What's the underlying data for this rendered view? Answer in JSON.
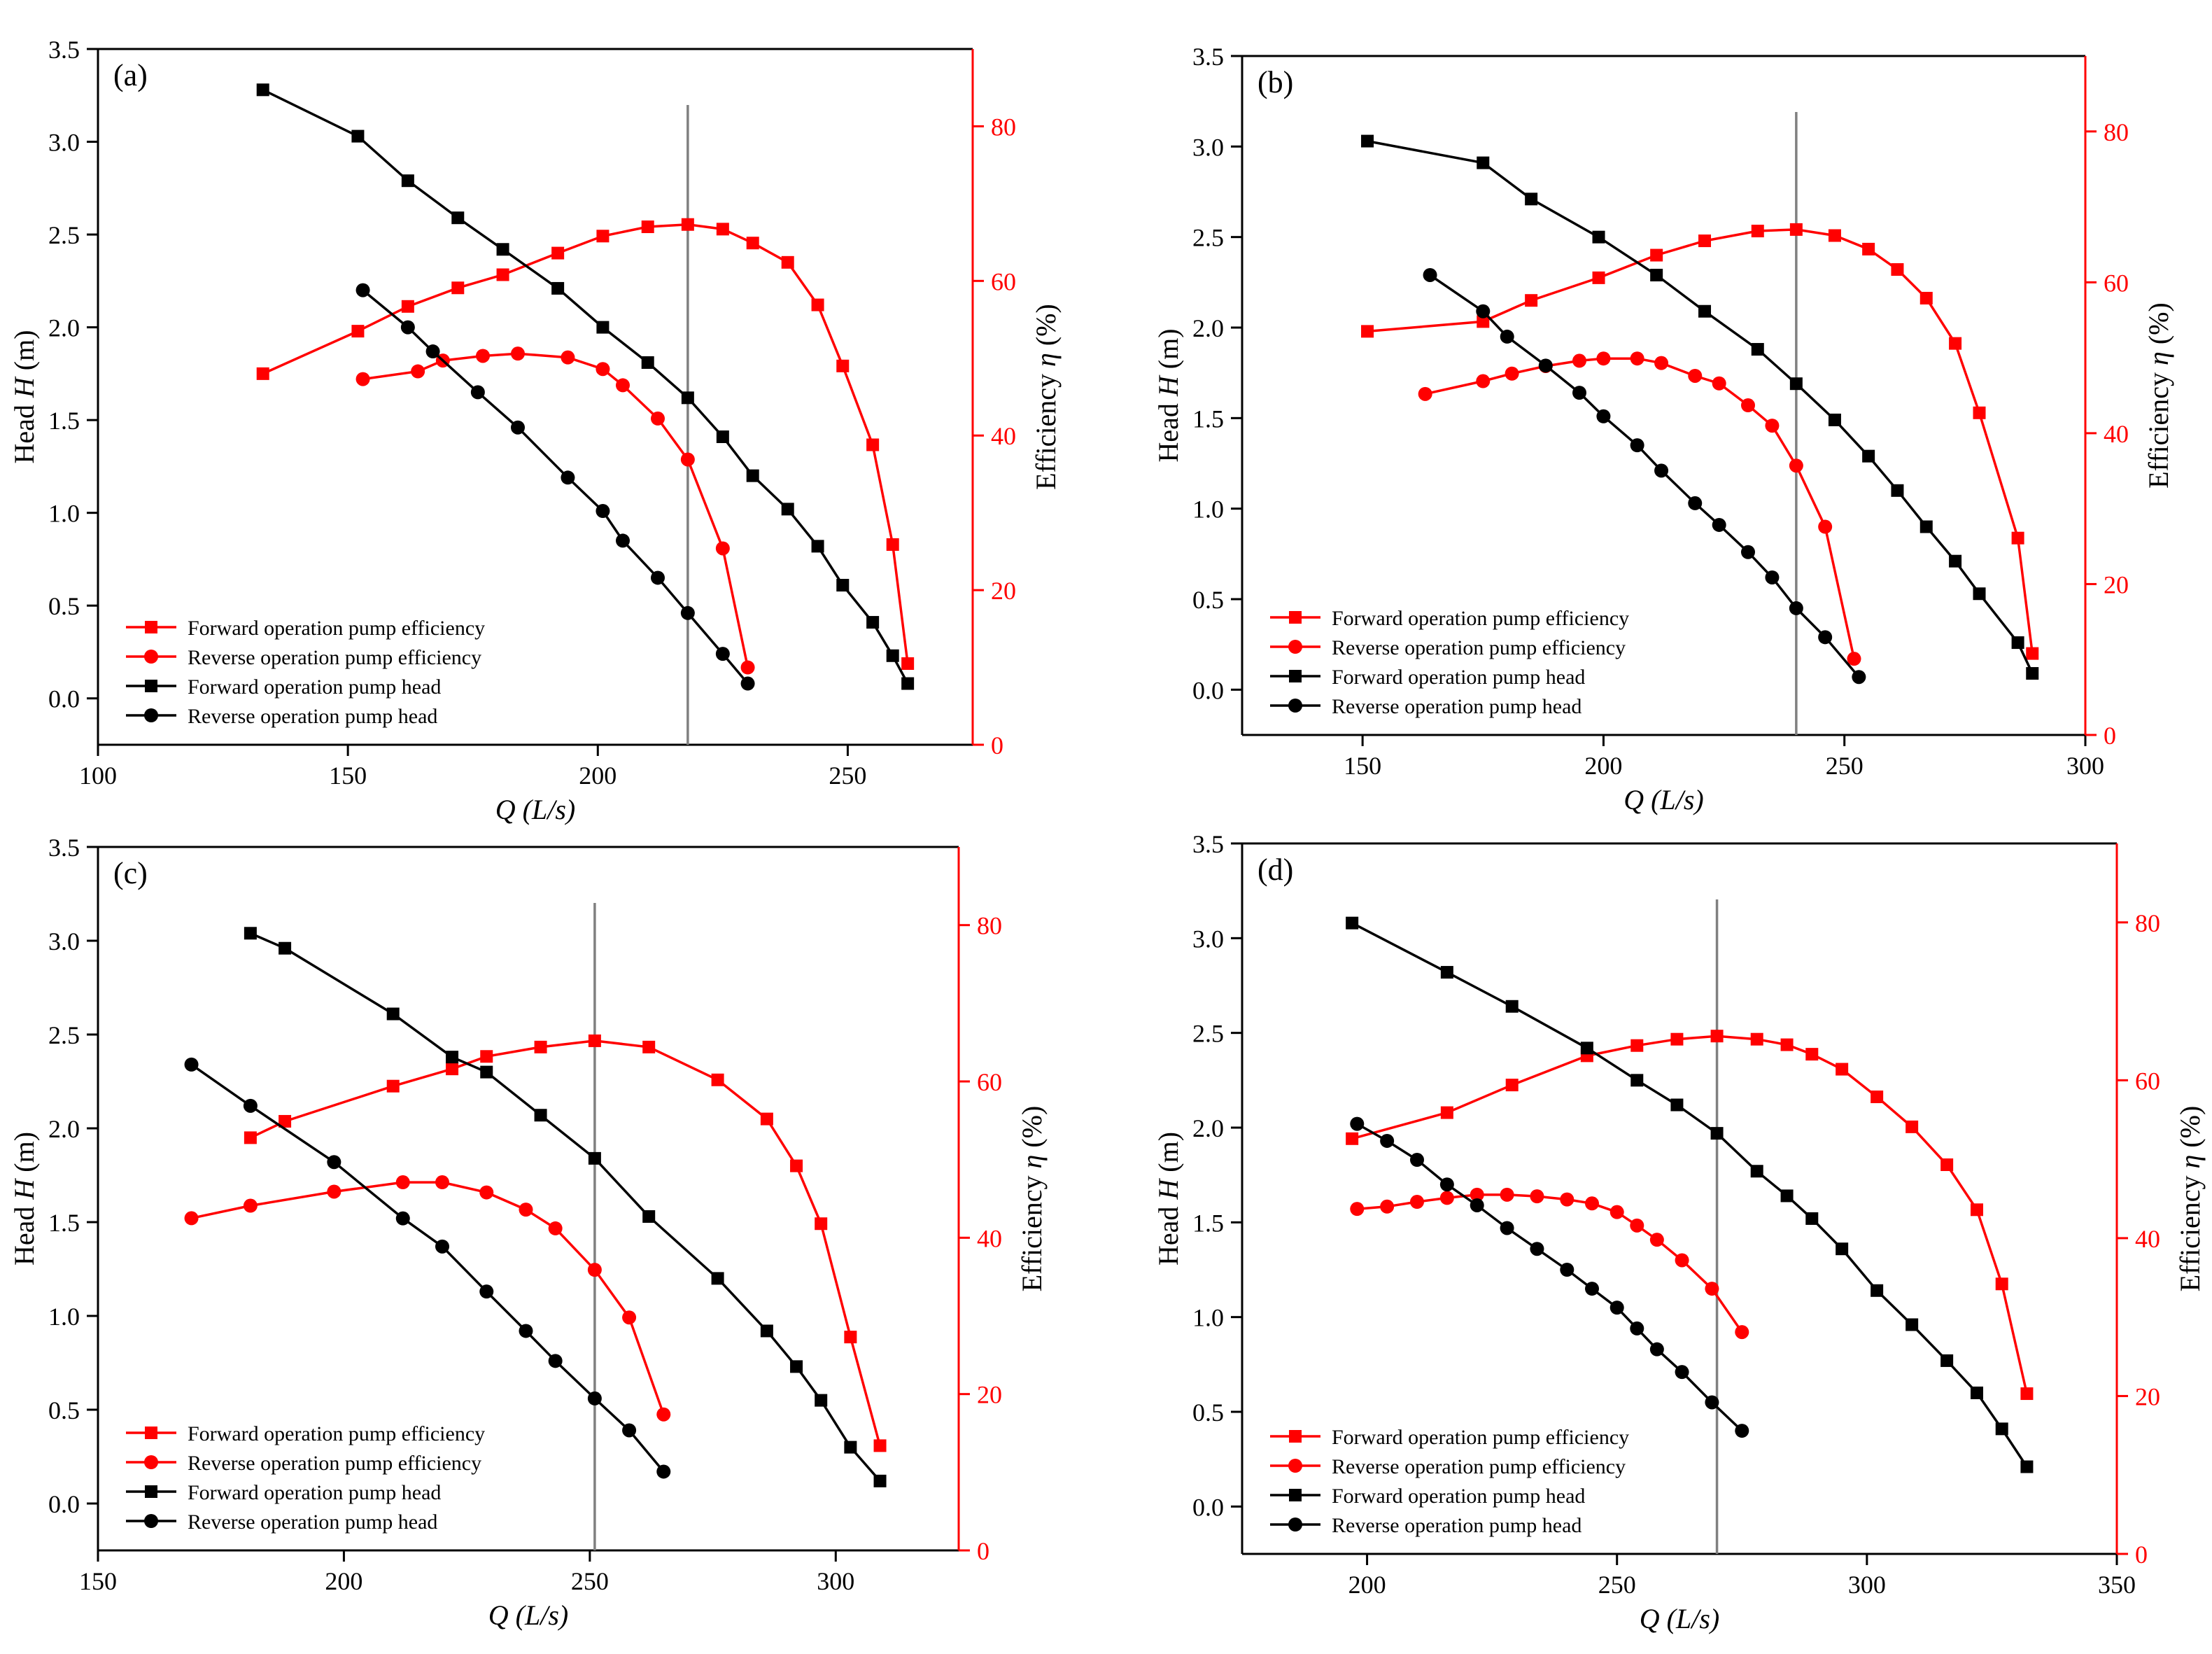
{
  "colors": {
    "head": "#000000",
    "efficiency": "#ff0000",
    "marker_line": "#808080",
    "axis": "#000000"
  },
  "chart_data": [
    {
      "type": "line",
      "label": "(a)",
      "xlabel_var": "Q",
      "xlabel_unit": "(L/s)",
      "ylabel_left_prefix": "Head ",
      "ylabel_left_var": "H",
      "ylabel_left_unit": " (m)",
      "ylabel_right_prefix": "Efficiency ",
      "ylabel_right_var": "η",
      "ylabel_right_unit": " (%)",
      "xlim": [
        100,
        275
      ],
      "xticks": [
        100,
        150,
        200,
        250
      ],
      "ylim_left": [
        -0.25,
        3.5
      ],
      "yticks_left": [
        0.0,
        0.5,
        1.0,
        1.5,
        2.0,
        2.5,
        3.0,
        3.5
      ],
      "ylim_right": [
        0,
        90
      ],
      "yticks_right": [
        0,
        20,
        40,
        60,
        80
      ],
      "vline_x": 218,
      "legend": [
        "Forward operation pump efficiency",
        "Reverse operation pump efficiency",
        "Forward operation pump head",
        "Reverse operation pump head"
      ],
      "series": [
        {
          "name": "Forward operation pump efficiency",
          "axis": "right",
          "marker": "square",
          "color": "#ff0000",
          "x": [
            133,
            152,
            162,
            172,
            181,
            192,
            201,
            210,
            218,
            225,
            231,
            238,
            244,
            249,
            255,
            259,
            262
          ],
          "y": [
            48,
            53.5,
            56.7,
            59.1,
            60.8,
            63.6,
            65.8,
            67,
            67.3,
            66.7,
            64.9,
            62.4,
            56.9,
            49,
            38.8,
            25.9,
            10.5
          ]
        },
        {
          "name": "Reverse operation pump efficiency",
          "axis": "right",
          "marker": "circle",
          "color": "#ff0000",
          "x": [
            153,
            164,
            169,
            177,
            184,
            194,
            201,
            205,
            212,
            218,
            225,
            230
          ],
          "y": [
            47.3,
            48.3,
            49.7,
            50.3,
            50.6,
            50.1,
            48.6,
            46.5,
            42.2,
            36.9,
            25.4,
            10
          ]
        },
        {
          "name": "Forward operation pump head",
          "axis": "left",
          "marker": "square",
          "color": "#000000",
          "x": [
            133,
            152,
            162,
            172,
            181,
            192,
            201,
            210,
            218,
            225,
            231,
            238,
            244,
            249,
            255,
            259,
            262
          ],
          "y": [
            3.28,
            3.03,
            2.79,
            2.59,
            2.42,
            2.21,
            2.0,
            1.81,
            1.62,
            1.41,
            1.2,
            1.02,
            0.82,
            0.61,
            0.41,
            0.23,
            0.08
          ]
        },
        {
          "name": "Reverse operation pump head",
          "axis": "left",
          "marker": "circle",
          "color": "#000000",
          "x": [
            153,
            162,
            167,
            176,
            184,
            194,
            201,
            205,
            212,
            218,
            225,
            230
          ],
          "y": [
            2.2,
            2.0,
            1.87,
            1.65,
            1.46,
            1.19,
            1.01,
            0.85,
            0.65,
            0.46,
            0.24,
            0.08
          ]
        }
      ]
    },
    {
      "type": "line",
      "label": "(b)",
      "xlabel_var": "Q",
      "xlabel_unit": "(L/s)",
      "ylabel_left_prefix": "Head ",
      "ylabel_left_var": "H",
      "ylabel_left_unit": " (m)",
      "ylabel_right_prefix": "Efficiency ",
      "ylabel_right_var": "η",
      "ylabel_right_unit": " (%)",
      "xlim": [
        125,
        300
      ],
      "xticks": [
        150,
        200,
        250,
        300
      ],
      "ylim_left": [
        -0.25,
        3.5
      ],
      "yticks_left": [
        0.0,
        0.5,
        1.0,
        1.5,
        2.0,
        2.5,
        3.0,
        3.5
      ],
      "ylim_right": [
        0,
        90
      ],
      "yticks_right": [
        0,
        20,
        40,
        60,
        80
      ],
      "vline_x": 240,
      "legend": [
        "Forward operation pump efficiency",
        "Reverse operation pump efficiency",
        "Forward operation pump head",
        "Reverse operation pump head"
      ],
      "series": [
        {
          "name": "Forward operation pump efficiency",
          "axis": "right",
          "marker": "square",
          "color": "#ff0000",
          "x": [
            151,
            175,
            185,
            199,
            211,
            221,
            232,
            240,
            248,
            255,
            261,
            267,
            273,
            278,
            286,
            289
          ],
          "y": [
            53.5,
            54.8,
            57.6,
            60.6,
            63.6,
            65.5,
            66.8,
            67,
            66.2,
            64.4,
            61.7,
            57.9,
            51.9,
            42.7,
            26.1,
            10.8
          ]
        },
        {
          "name": "Reverse operation pump efficiency",
          "axis": "right",
          "marker": "circle",
          "color": "#ff0000",
          "x": [
            163,
            175,
            181,
            188,
            195,
            200,
            207,
            212,
            219,
            224,
            230,
            235,
            240,
            246,
            252
          ],
          "y": [
            45.2,
            46.9,
            47.9,
            48.9,
            49.6,
            49.9,
            49.9,
            49.3,
            47.6,
            46.6,
            43.7,
            41,
            35.7,
            27.6,
            10.1
          ]
        },
        {
          "name": "Forward operation pump head",
          "axis": "left",
          "marker": "square",
          "color": "#000000",
          "x": [
            151,
            175,
            185,
            199,
            211,
            221,
            232,
            240,
            248,
            255,
            261,
            267,
            273,
            278,
            286,
            289
          ],
          "y": [
            3.03,
            2.91,
            2.71,
            2.5,
            2.29,
            2.09,
            1.88,
            1.69,
            1.49,
            1.29,
            1.1,
            0.9,
            0.71,
            0.53,
            0.26,
            0.09
          ]
        },
        {
          "name": "Reverse operation pump head",
          "axis": "left",
          "marker": "circle",
          "color": "#000000",
          "x": [
            164,
            175,
            180,
            188,
            195,
            200,
            207,
            212,
            219,
            224,
            230,
            235,
            240,
            246,
            253
          ],
          "y": [
            2.29,
            2.09,
            1.95,
            1.79,
            1.64,
            1.51,
            1.35,
            1.21,
            1.03,
            0.91,
            0.76,
            0.62,
            0.45,
            0.29,
            0.07
          ]
        }
      ]
    },
    {
      "type": "line",
      "label": "(c)",
      "xlabel_var": "Q",
      "xlabel_unit": "(L/s)",
      "ylabel_left_prefix": "Head ",
      "ylabel_left_var": "H",
      "ylabel_left_unit": " (m)",
      "ylabel_right_prefix": "Efficiency ",
      "ylabel_right_var": "η",
      "ylabel_right_unit": " (%)",
      "xlim": [
        150,
        325
      ],
      "xticks": [
        150,
        200,
        250,
        300
      ],
      "ylim_left": [
        -0.25,
        3.5
      ],
      "yticks_left": [
        0.0,
        0.5,
        1.0,
        1.5,
        2.0,
        2.5,
        3.0,
        3.5
      ],
      "ylim_right": [
        0,
        90
      ],
      "yticks_right": [
        0,
        20,
        40,
        60,
        80
      ],
      "vline_x": 251,
      "legend": [
        "Forward operation pump efficiency",
        "Reverse operation pump efficiency",
        "Forward operation pump head",
        "Reverse operation pump head"
      ],
      "series": [
        {
          "name": "Forward operation pump efficiency",
          "axis": "right",
          "marker": "square",
          "color": "#ff0000",
          "x": [
            181,
            188,
            210,
            222,
            229,
            240,
            251,
            262,
            276,
            286,
            292,
            297,
            303,
            309
          ],
          "y": [
            52.8,
            54.9,
            59.4,
            61.6,
            63.2,
            64.4,
            65.2,
            64.4,
            60.2,
            55.2,
            49.2,
            41.8,
            27.3,
            13.4
          ]
        },
        {
          "name": "Reverse operation pump efficiency",
          "axis": "right",
          "marker": "circle",
          "color": "#ff0000",
          "x": [
            169,
            181,
            198,
            212,
            220,
            229,
            237,
            243,
            251,
            258,
            265
          ],
          "y": [
            42.5,
            44.1,
            45.9,
            47.1,
            47.1,
            45.8,
            43.6,
            41.2,
            35.9,
            29.8,
            17.4
          ]
        },
        {
          "name": "Forward operation pump head",
          "axis": "left",
          "marker": "square",
          "color": "#000000",
          "x": [
            181,
            188,
            210,
            222,
            229,
            240,
            251,
            262,
            276,
            286,
            292,
            297,
            303,
            309
          ],
          "y": [
            3.04,
            2.96,
            2.61,
            2.38,
            2.3,
            2.07,
            1.84,
            1.53,
            1.2,
            0.92,
            0.73,
            0.55,
            0.3,
            0.12
          ]
        },
        {
          "name": "Reverse operation pump head",
          "axis": "left",
          "marker": "circle",
          "color": "#000000",
          "x": [
            169,
            181,
            198,
            212,
            220,
            229,
            237,
            243,
            251,
            258,
            265
          ],
          "y": [
            2.34,
            2.12,
            1.82,
            1.52,
            1.37,
            1.13,
            0.92,
            0.76,
            0.56,
            0.39,
            0.17
          ]
        }
      ]
    },
    {
      "type": "line",
      "label": "(d)",
      "xlabel_var": "Q",
      "xlabel_unit": "(L/s)",
      "ylabel_left_prefix": "Head ",
      "ylabel_left_var": "H",
      "ylabel_left_unit": " (m)",
      "ylabel_right_prefix": "Efficiency ",
      "ylabel_right_var": "η",
      "ylabel_right_unit": " (%)",
      "xlim": [
        175,
        350
      ],
      "xticks": [
        200,
        250,
        300,
        350
      ],
      "ylim_left": [
        -0.25,
        3.5
      ],
      "yticks_left": [
        0.0,
        0.5,
        1.0,
        1.5,
        2.0,
        2.5,
        3.0,
        3.5
      ],
      "ylim_right": [
        0,
        90
      ],
      "yticks_right": [
        0,
        20,
        40,
        60,
        80
      ],
      "vline_x": 270,
      "legend": [
        "Forward operation pump efficiency",
        "Reverse operation pump efficiency",
        "Forward operation pump head",
        "Reverse operation pump head"
      ],
      "series": [
        {
          "name": "Forward operation pump efficiency",
          "axis": "right",
          "marker": "square",
          "color": "#ff0000",
          "x": [
            197,
            216,
            229,
            244,
            254,
            262,
            270,
            278,
            284,
            289,
            295,
            302,
            309,
            316,
            322,
            327,
            332
          ],
          "y": [
            52.6,
            55.9,
            59.4,
            63.1,
            64.4,
            65.2,
            65.6,
            65.2,
            64.5,
            63.3,
            61.4,
            57.9,
            54.1,
            49.3,
            43.6,
            34.2,
            20.3
          ]
        },
        {
          "name": "Reverse operation pump efficiency",
          "axis": "right",
          "marker": "circle",
          "color": "#ff0000",
          "x": [
            198,
            204,
            210,
            216,
            222,
            228,
            234,
            240,
            245,
            250,
            254,
            258,
            263,
            269,
            275
          ],
          "y": [
            43.7,
            44,
            44.6,
            45.1,
            45.5,
            45.5,
            45.3,
            44.9,
            44.4,
            43.3,
            41.6,
            39.8,
            37.2,
            33.6,
            28.1
          ]
        },
        {
          "name": "Forward operation pump head",
          "axis": "left",
          "marker": "square",
          "color": "#000000",
          "x": [
            197,
            216,
            229,
            244,
            254,
            262,
            270,
            278,
            284,
            289,
            295,
            302,
            309,
            316,
            322,
            327,
            332
          ],
          "y": [
            3.08,
            2.82,
            2.64,
            2.42,
            2.25,
            2.12,
            1.97,
            1.77,
            1.64,
            1.52,
            1.36,
            1.14,
            0.96,
            0.77,
            0.6,
            0.41,
            0.21
          ]
        },
        {
          "name": "Reverse operation pump head",
          "axis": "left",
          "marker": "circle",
          "color": "#000000",
          "x": [
            198,
            204,
            210,
            216,
            222,
            228,
            234,
            240,
            245,
            250,
            254,
            258,
            263,
            269,
            275
          ],
          "y": [
            2.02,
            1.93,
            1.83,
            1.7,
            1.59,
            1.47,
            1.36,
            1.25,
            1.15,
            1.05,
            0.94,
            0.83,
            0.71,
            0.55,
            0.4
          ]
        }
      ]
    }
  ]
}
